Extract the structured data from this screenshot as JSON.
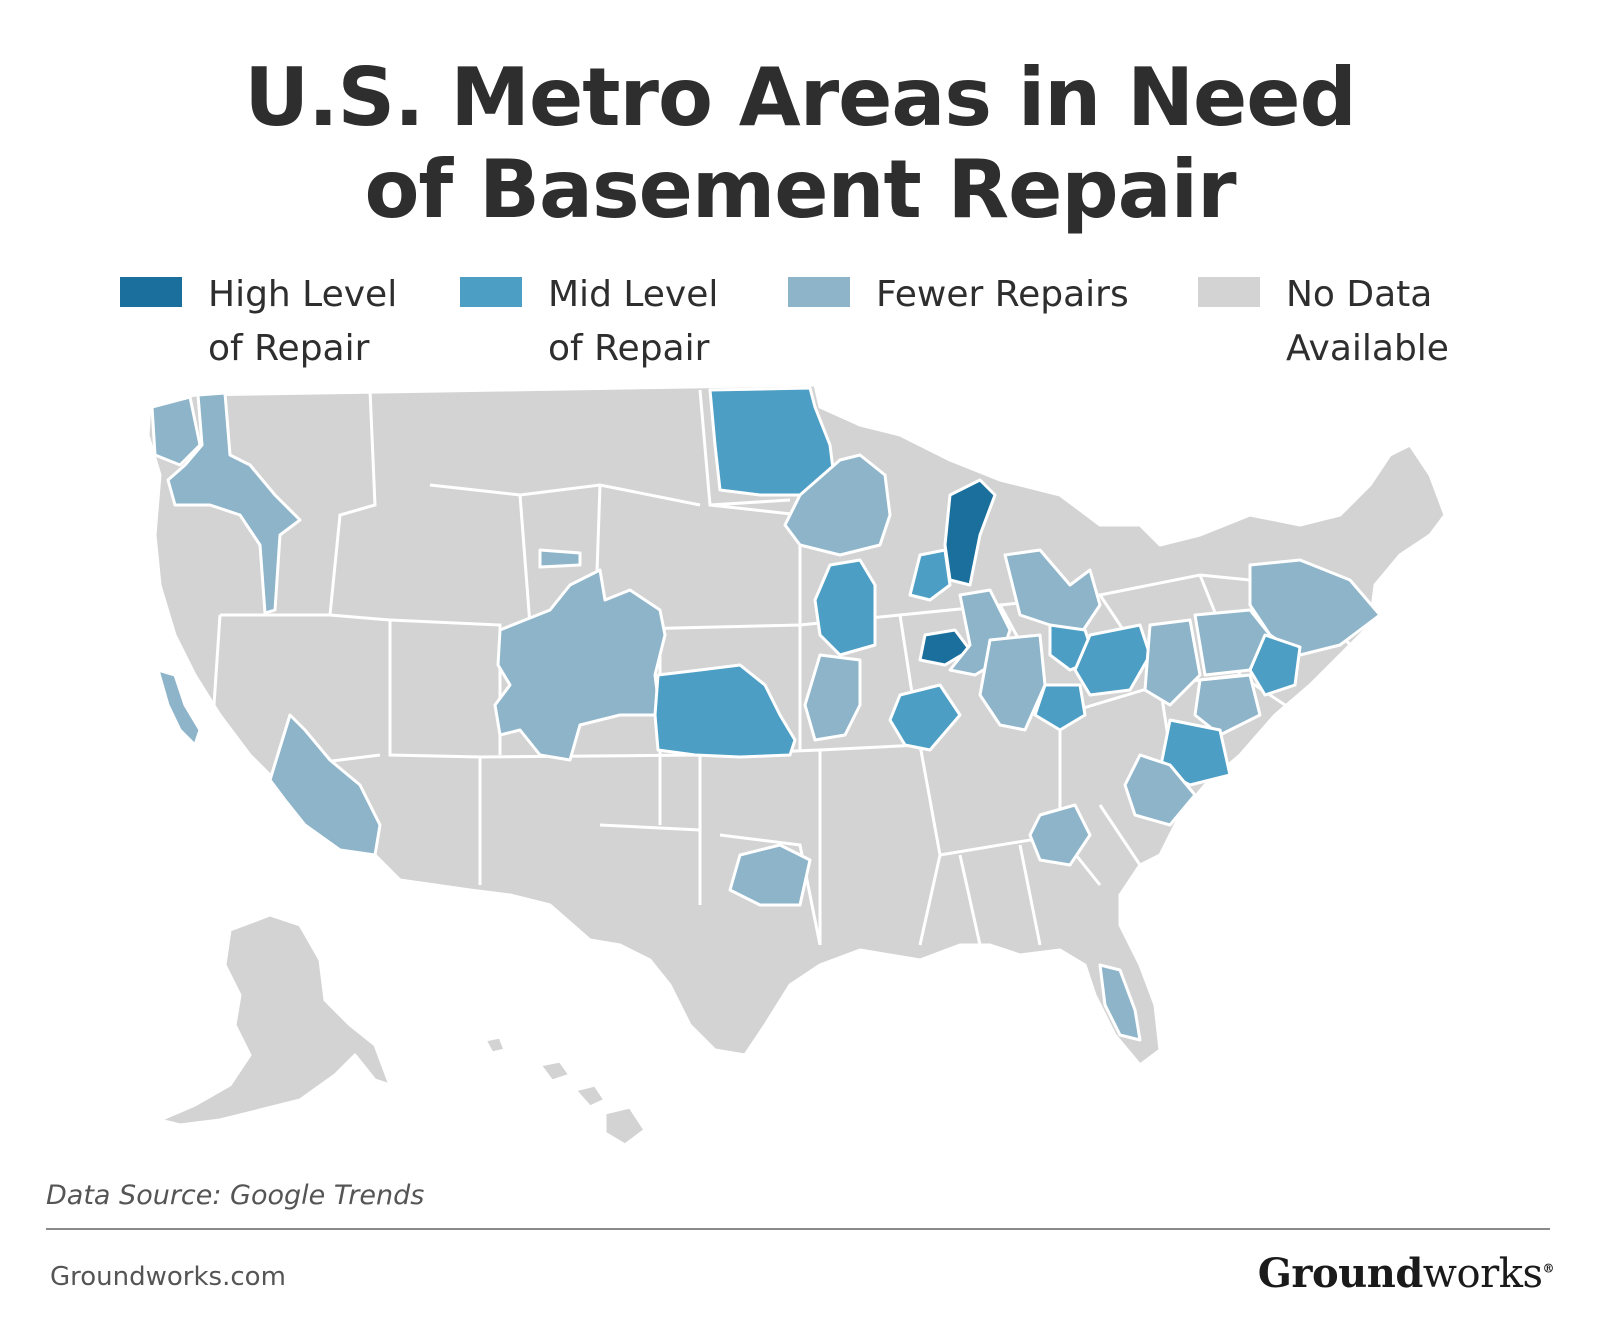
{
  "title": {
    "line1": "U.S. Metro Areas in Need",
    "line2": "of Basement Repair"
  },
  "legend": [
    {
      "line1": "High Level",
      "line2": "of Repair",
      "color": "#1b6f9c"
    },
    {
      "line1": "Mid Level",
      "line2": "of Repair",
      "color": "#4d9ec4"
    },
    {
      "line1": "Fewer Repairs",
      "line2": "",
      "color": "#8db4c9"
    },
    {
      "line1": "No Data",
      "line2": "Available",
      "color": "#d3d3d3"
    }
  ],
  "map": {
    "colors": {
      "high": "#1b6f9c",
      "mid": "#4d9ec4",
      "fewer": "#8db4c9",
      "no_data": "#d3d3d3",
      "border": "#ffffff"
    }
  },
  "footer": {
    "source": "Data Source: Google Trends",
    "site": "Groundworks.com",
    "brand_bold": "Ground",
    "brand_light": "works",
    "brand_mark": "®"
  }
}
